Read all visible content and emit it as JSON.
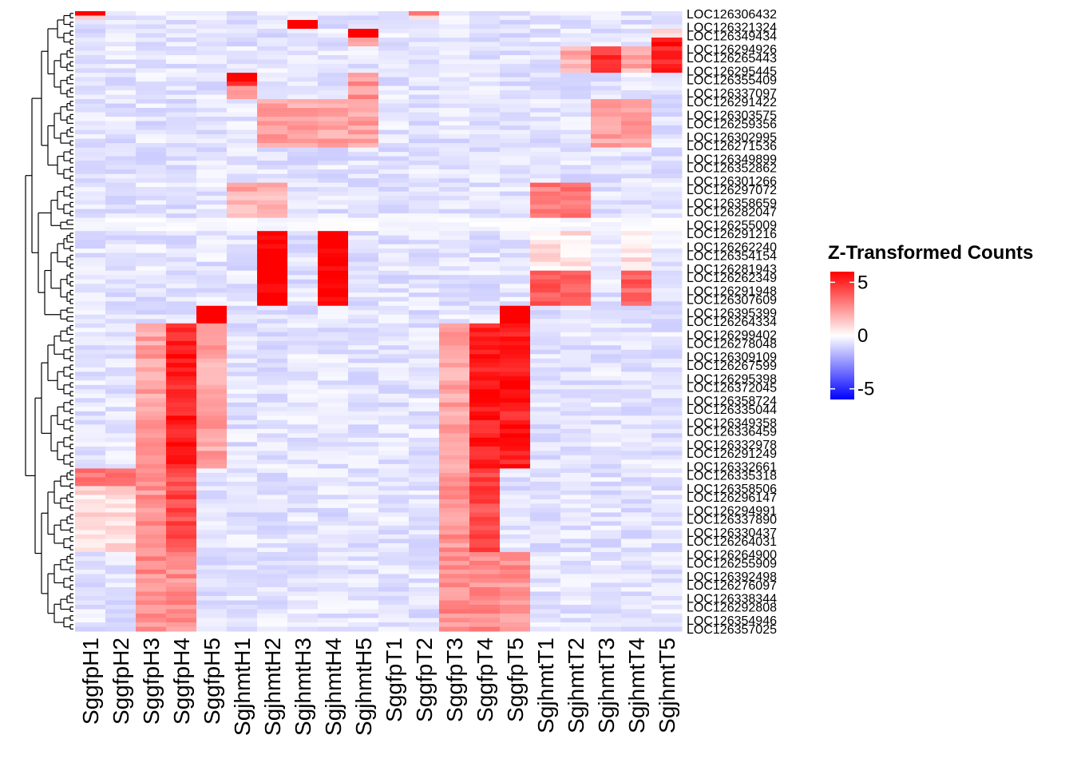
{
  "chart_data": {
    "type": "heatmap",
    "title": "",
    "xlabel": "",
    "ylabel": "",
    "legend": {
      "title": "Z-Transformed Counts",
      "ticks": [
        5,
        0,
        -5
      ],
      "range": [
        -6,
        6
      ],
      "colors": {
        "low": "#0000ff",
        "mid": "#ffffff",
        "high": "#ff0000"
      }
    },
    "columns": [
      "SggfpH1",
      "SggfpH2",
      "SggfpH3",
      "SggfpH4",
      "SggfpH5",
      "SgjhmtH1",
      "SgjhmtH2",
      "SgjhmtH3",
      "SgjhmtH4",
      "SgjhmtH5",
      "SggfpT1",
      "SggfpT2",
      "SggfpT3",
      "SggfpT4",
      "SggfpT5",
      "SgjhmtT1",
      "SgjhmtT2",
      "SgjhmtT3",
      "SgjhmtT4",
      "SgjhmtT5"
    ],
    "row_labels": [
      {
        "text": "LOC126306432",
        "row": 0
      },
      {
        "text": "LOC126321324",
        "row": 3
      },
      {
        "text": "LOC126349434",
        "row": 5
      },
      {
        "text": "LOC126294926",
        "row": 8
      },
      {
        "text": "LOC126265443",
        "row": 10
      },
      {
        "text": "LOC126295445",
        "row": 13
      },
      {
        "text": "LOC126355409",
        "row": 15
      },
      {
        "text": "LOC126337097",
        "row": 18
      },
      {
        "text": "LOC126291422",
        "row": 20
      },
      {
        "text": "LOC126303575",
        "row": 23
      },
      {
        "text": "LOC126259356",
        "row": 25
      },
      {
        "text": "LOC126302995",
        "row": 28
      },
      {
        "text": "LOC126271536",
        "row": 30
      },
      {
        "text": "LOC126349899",
        "row": 33
      },
      {
        "text": "LOC126352862",
        "row": 35
      },
      {
        "text": "LOC126301266",
        "row": 38
      },
      {
        "text": "LOC126297072",
        "row": 40
      },
      {
        "text": "LOC126358659",
        "row": 43
      },
      {
        "text": "LOC126282047",
        "row": 45
      },
      {
        "text": "LOC126255009",
        "row": 48
      },
      {
        "text": "LOC126291216",
        "row": 50
      },
      {
        "text": "LOC126262240",
        "row": 53
      },
      {
        "text": "LOC126354154",
        "row": 55
      },
      {
        "text": "LOC126281943",
        "row": 58
      },
      {
        "text": "LOC126262349",
        "row": 60
      },
      {
        "text": "LOC126291948",
        "row": 63
      },
      {
        "text": "LOC126307609",
        "row": 65
      },
      {
        "text": "LOC126395399",
        "row": 68
      },
      {
        "text": "LOC126264334",
        "row": 70
      },
      {
        "text": "LOC126299402",
        "row": 73
      },
      {
        "text": "LOC126278048",
        "row": 75
      },
      {
        "text": "LOC126309109",
        "row": 78
      },
      {
        "text": "LOC126267599",
        "row": 80
      },
      {
        "text": "LOC126295398",
        "row": 83
      },
      {
        "text": "LOC126372045",
        "row": 85
      },
      {
        "text": "LOC126358724",
        "row": 88
      },
      {
        "text": "LOC126335044",
        "row": 90
      },
      {
        "text": "LOC126349358",
        "row": 93
      },
      {
        "text": "LOC126336459",
        "row": 95
      },
      {
        "text": "LOC126332978",
        "row": 98
      },
      {
        "text": "LOC126291249",
        "row": 100
      },
      {
        "text": "LOC126332661",
        "row": 103
      },
      {
        "text": "LOC126335318",
        "row": 105
      },
      {
        "text": "LOC126358506",
        "row": 108
      },
      {
        "text": "LOC126296147",
        "row": 110
      },
      {
        "text": "LOC126294991",
        "row": 113
      },
      {
        "text": "LOC126337890",
        "row": 115
      },
      {
        "text": "LOC126330437",
        "row": 118
      },
      {
        "text": "LOC126264031",
        "row": 120
      },
      {
        "text": "LOC126264900",
        "row": 123
      },
      {
        "text": "LOC126255909",
        "row": 125
      },
      {
        "text": "LOC126392498",
        "row": 128
      },
      {
        "text": "LOC126276097",
        "row": 130
      },
      {
        "text": "LOC126338344",
        "row": 133
      },
      {
        "text": "LOC126292808",
        "row": 135
      },
      {
        "text": "LOC126354946",
        "row": 138
      },
      {
        "text": "LOC126357025",
        "row": 140
      }
    ],
    "n_rows": 141,
    "row_groups": [
      {
        "rows": [
          0,
          1
        ],
        "pattern": "col0-strong-sggfph1"
      },
      {
        "rows": [
          2,
          3
        ],
        "pattern": "sgjhmtH3-peak"
      },
      {
        "rows": [
          4,
          7
        ],
        "pattern": "sgjhmtH5-peak"
      },
      {
        "rows": [
          8,
          13
        ],
        "pattern": "sgjhmtT3-T5-high"
      },
      {
        "rows": [
          14,
          19
        ],
        "pattern": "sgjhmtH1-peak"
      },
      {
        "rows": [
          20,
          30
        ],
        "pattern": "sgjhmtH-T3-mixed-pos"
      },
      {
        "rows": [
          31,
          38
        ],
        "pattern": "mostly-flat"
      },
      {
        "rows": [
          39,
          46
        ],
        "pattern": "sgjhmtT1-T4-pos"
      },
      {
        "rows": [
          47,
          49
        ],
        "pattern": "flat-neutral"
      },
      {
        "rows": [
          50,
          66
        ],
        "pattern": "sgjhmtH2-H4-very-high"
      },
      {
        "rows": [
          67,
          70
        ],
        "pattern": "sggfpH5-T5-peak"
      },
      {
        "rows": [
          71,
          103
        ],
        "pattern": "sggfpH4-T4-T5-high"
      },
      {
        "rows": [
          104,
          122
        ],
        "pattern": "sggfpH3-H4-T3-T4-pos"
      },
      {
        "rows": [
          123,
          140
        ],
        "pattern": "sggfpH3-T3-mild-pos"
      }
    ]
  }
}
